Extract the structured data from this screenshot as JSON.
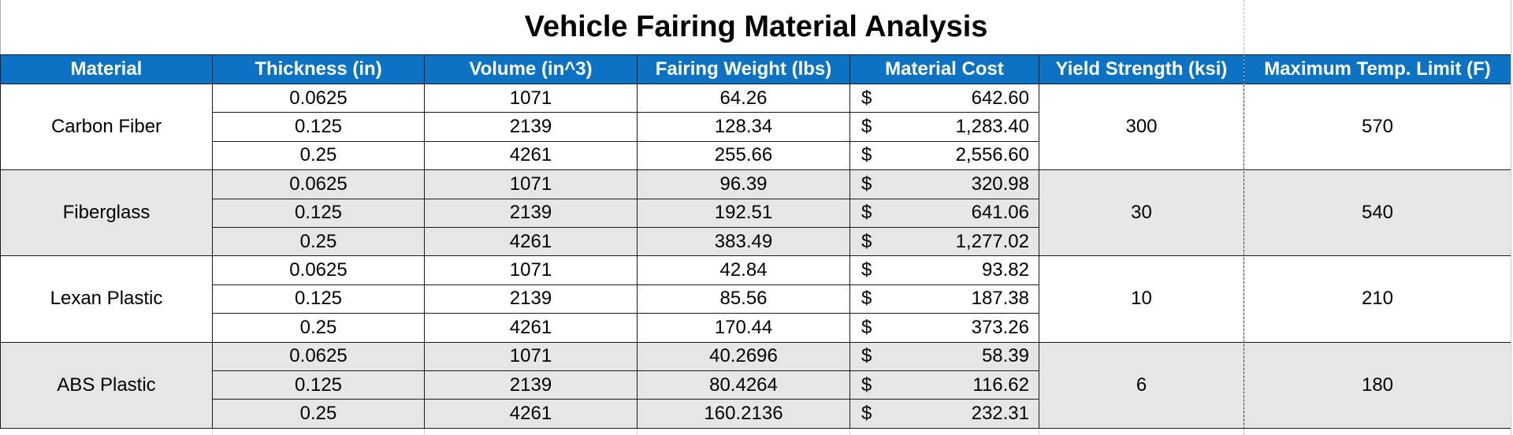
{
  "title": "Vehicle Fairing Material Analysis",
  "headers": {
    "material": "Material",
    "thickness": "Thickness (in)",
    "volume": "Volume (in^3)",
    "weight": "Fairing Weight (lbs)",
    "cost": "Material Cost",
    "yield": "Yield Strength (ksi)",
    "temp": "Maximum Temp. Limit (F)"
  },
  "currency_symbol": "$",
  "colors": {
    "header_bg": "#0b72c4",
    "header_text": "#ffffff",
    "shade_row": "#e6e6e6"
  },
  "materials": [
    {
      "name": "Carbon Fiber",
      "yield": "300",
      "temp": "570",
      "rows": [
        {
          "thickness": "0.0625",
          "volume": "1071",
          "weight": "64.26",
          "cost": "642.60"
        },
        {
          "thickness": "0.125",
          "volume": "2139",
          "weight": "128.34",
          "cost": "1,283.40"
        },
        {
          "thickness": "0.25",
          "volume": "4261",
          "weight": "255.66",
          "cost": "2,556.60"
        }
      ]
    },
    {
      "name": "Fiberglass",
      "yield": "30",
      "temp": "540",
      "rows": [
        {
          "thickness": "0.0625",
          "volume": "1071",
          "weight": "96.39",
          "cost": "320.98"
        },
        {
          "thickness": "0.125",
          "volume": "2139",
          "weight": "192.51",
          "cost": "641.06"
        },
        {
          "thickness": "0.25",
          "volume": "4261",
          "weight": "383.49",
          "cost": "1,277.02"
        }
      ]
    },
    {
      "name": "Lexan Plastic",
      "yield": "10",
      "temp": "210",
      "rows": [
        {
          "thickness": "0.0625",
          "volume": "1071",
          "weight": "42.84",
          "cost": "93.82"
        },
        {
          "thickness": "0.125",
          "volume": "2139",
          "weight": "85.56",
          "cost": "187.38"
        },
        {
          "thickness": "0.25",
          "volume": "4261",
          "weight": "170.44",
          "cost": "373.26"
        }
      ]
    },
    {
      "name": "ABS Plastic",
      "yield": "6",
      "temp": "180",
      "rows": [
        {
          "thickness": "0.0625",
          "volume": "1071",
          "weight": "40.2696",
          "cost": "58.39"
        },
        {
          "thickness": "0.125",
          "volume": "2139",
          "weight": "80.4264",
          "cost": "116.62"
        },
        {
          "thickness": "0.25",
          "volume": "4261",
          "weight": "160.2136",
          "cost": "232.31"
        }
      ]
    }
  ]
}
